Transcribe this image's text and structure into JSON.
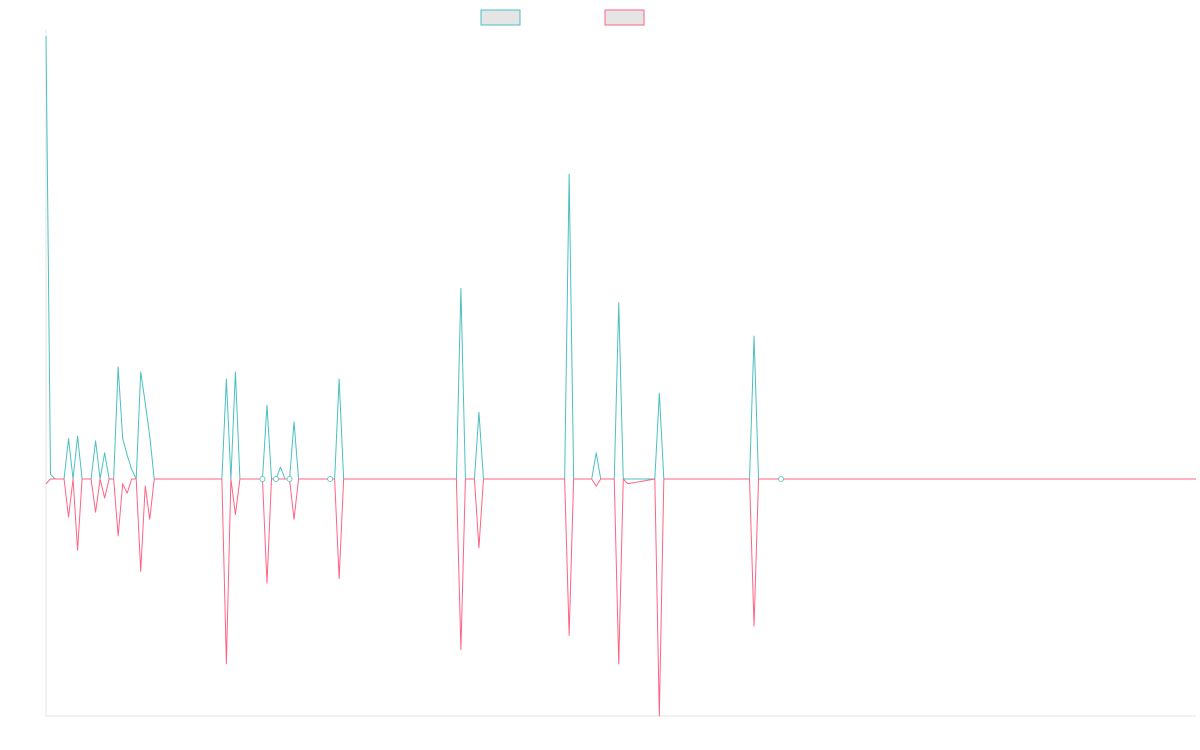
{
  "chart_data": {
    "type": "line",
    "title": "",
    "xlabel": "",
    "ylabel": "",
    "grid": false,
    "legend_position": "top-center",
    "ylim": [
      -1.0,
      1.86
    ],
    "x_count": 256,
    "series": [
      {
        "color": "#4bc0c0",
        "fill": "#e5e5e5",
        "points": [
          [
            0,
            1.86
          ],
          [
            1,
            0.02
          ],
          [
            2,
            0
          ],
          [
            3,
            0
          ],
          [
            4,
            0
          ],
          [
            5,
            0.17
          ],
          [
            6,
            0
          ],
          [
            7,
            0.18
          ],
          [
            8,
            0
          ],
          [
            9,
            0
          ],
          [
            10,
            0
          ],
          [
            11,
            0.16
          ],
          [
            12,
            0
          ],
          [
            13,
            0.11
          ],
          [
            14,
            0
          ],
          [
            15,
            0
          ],
          [
            16,
            0.47
          ],
          [
            17,
            0.17
          ],
          [
            18,
            0.1
          ],
          [
            19,
            0.04
          ],
          [
            20,
            0
          ],
          [
            21,
            0.45
          ],
          [
            22,
            0.32
          ],
          [
            23,
            0.18
          ],
          [
            24,
            0
          ],
          [
            39,
            0
          ],
          [
            40,
            0.42
          ],
          [
            41,
            0
          ],
          [
            42,
            0.45
          ],
          [
            43,
            0
          ],
          [
            47,
            0
          ],
          [
            48,
            0
          ],
          [
            49,
            0.31
          ],
          [
            50,
            0
          ],
          [
            51,
            0
          ],
          [
            52,
            0.05
          ],
          [
            53,
            0
          ],
          [
            54,
            0
          ],
          [
            55,
            0.24
          ],
          [
            56,
            0
          ],
          [
            62,
            0
          ],
          [
            63,
            0
          ],
          [
            64,
            0
          ],
          [
            65,
            0.42
          ],
          [
            66,
            0
          ],
          [
            91,
            0
          ],
          [
            92,
            0.8
          ],
          [
            93,
            0
          ],
          [
            95,
            0
          ],
          [
            96,
            0.28
          ],
          [
            97,
            0
          ],
          [
            115,
            0
          ],
          [
            116,
            1.28
          ],
          [
            117,
            0
          ],
          [
            121,
            0
          ],
          [
            122,
            0.11
          ],
          [
            123,
            0
          ],
          [
            126,
            0
          ],
          [
            127,
            0.74
          ],
          [
            128,
            0
          ],
          [
            129,
            0
          ],
          [
            135,
            0
          ],
          [
            136,
            0.36
          ],
          [
            137,
            0
          ],
          [
            156,
            0
          ],
          [
            157,
            0.6
          ],
          [
            158,
            0
          ],
          [
            163,
            0
          ],
          [
            255,
            0
          ]
        ]
      },
      {
        "color": "#ff6384",
        "fill": "#e5e5e5",
        "points": [
          [
            0,
            -0.02
          ],
          [
            1,
            0
          ],
          [
            2,
            0
          ],
          [
            3,
            0
          ],
          [
            4,
            0
          ],
          [
            5,
            -0.16
          ],
          [
            6,
            0
          ],
          [
            7,
            -0.3
          ],
          [
            8,
            0
          ],
          [
            9,
            0
          ],
          [
            10,
            0
          ],
          [
            11,
            -0.14
          ],
          [
            12,
            0
          ],
          [
            13,
            -0.08
          ],
          [
            14,
            0
          ],
          [
            15,
            0
          ],
          [
            16,
            -0.24
          ],
          [
            17,
            -0.02
          ],
          [
            18,
            -0.06
          ],
          [
            19,
            0
          ],
          [
            20,
            0
          ],
          [
            21,
            -0.39
          ],
          [
            22,
            -0.03
          ],
          [
            23,
            -0.17
          ],
          [
            24,
            0
          ],
          [
            39,
            0
          ],
          [
            40,
            -0.78
          ],
          [
            41,
            0
          ],
          [
            42,
            -0.15
          ],
          [
            43,
            0
          ],
          [
            47,
            0
          ],
          [
            48,
            0
          ],
          [
            49,
            -0.44
          ],
          [
            50,
            0
          ],
          [
            51,
            0
          ],
          [
            52,
            0
          ],
          [
            53,
            0
          ],
          [
            54,
            0
          ],
          [
            55,
            -0.17
          ],
          [
            56,
            0
          ],
          [
            62,
            0
          ],
          [
            63,
            0
          ],
          [
            64,
            0
          ],
          [
            65,
            -0.42
          ],
          [
            66,
            0
          ],
          [
            91,
            0
          ],
          [
            92,
            -0.72
          ],
          [
            93,
            0
          ],
          [
            95,
            0
          ],
          [
            96,
            -0.29
          ],
          [
            97,
            0
          ],
          [
            115,
            0
          ],
          [
            116,
            -0.66
          ],
          [
            117,
            0
          ],
          [
            121,
            0
          ],
          [
            122,
            -0.03
          ],
          [
            123,
            0
          ],
          [
            126,
            0
          ],
          [
            127,
            -0.78
          ],
          [
            128,
            0
          ],
          [
            129,
            -0.02
          ],
          [
            135,
            0
          ],
          [
            136,
            -1.0
          ],
          [
            137,
            0
          ],
          [
            156,
            0
          ],
          [
            157,
            -0.62
          ],
          [
            158,
            0
          ],
          [
            163,
            0
          ],
          [
            255,
            0
          ]
        ]
      }
    ],
    "markers": [
      {
        "x": 48,
        "y": 0
      },
      {
        "x": 51,
        "y": 0
      },
      {
        "x": 54,
        "y": 0
      },
      {
        "x": 63,
        "y": 0
      },
      {
        "x": 163,
        "y": 0
      }
    ]
  }
}
